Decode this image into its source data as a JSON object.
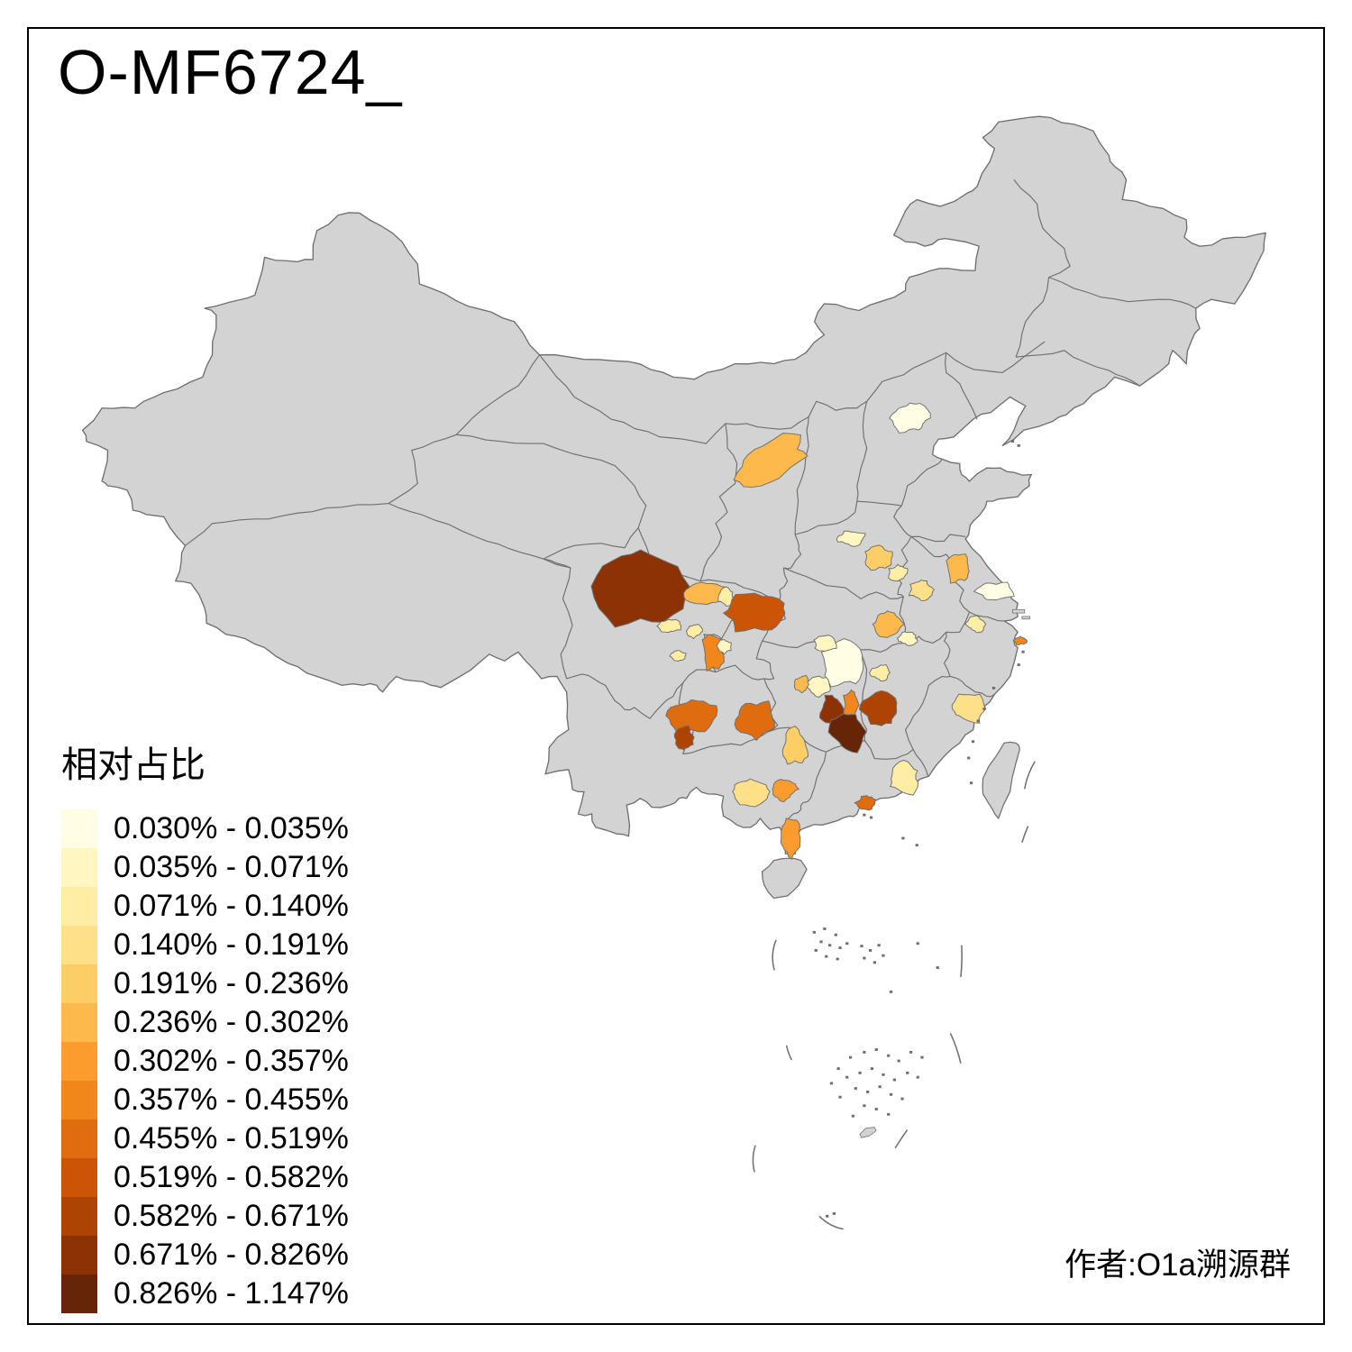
{
  "title": "O-MF6724_",
  "attribution": "作者:O1a溯源群",
  "legend": {
    "title": "相对占比",
    "bins": [
      {
        "label": "0.030% - 0.035%",
        "color": "#FFFEE5"
      },
      {
        "label": "0.035% - 0.071%",
        "color": "#FFF6C2"
      },
      {
        "label": "0.071% - 0.140%",
        "color": "#FEEDA5"
      },
      {
        "label": "0.140% - 0.191%",
        "color": "#FEE088"
      },
      {
        "label": "0.191% - 0.236%",
        "color": "#FDCE66"
      },
      {
        "label": "0.236% - 0.302%",
        "color": "#FDB94B"
      },
      {
        "label": "0.302% - 0.357%",
        "color": "#FD9C2E"
      },
      {
        "label": "0.357% - 0.455%",
        "color": "#F1861B"
      },
      {
        "label": "0.455% - 0.519%",
        "color": "#E06C10"
      },
      {
        "label": "0.519% - 0.582%",
        "color": "#CB5406"
      },
      {
        "label": "0.582% - 0.671%",
        "color": "#AE4403"
      },
      {
        "label": "0.671% - 0.826%",
        "color": "#8D3204"
      },
      {
        "label": "0.826% - 1.147%",
        "color": "#652506"
      }
    ]
  },
  "map": {
    "name": "china-relative-share-choropleth",
    "sea_color": "#FFFFFF",
    "land_color": "#D3D3D3",
    "boundary_color": "#6F6F6F",
    "frame_color": "#000000"
  }
}
